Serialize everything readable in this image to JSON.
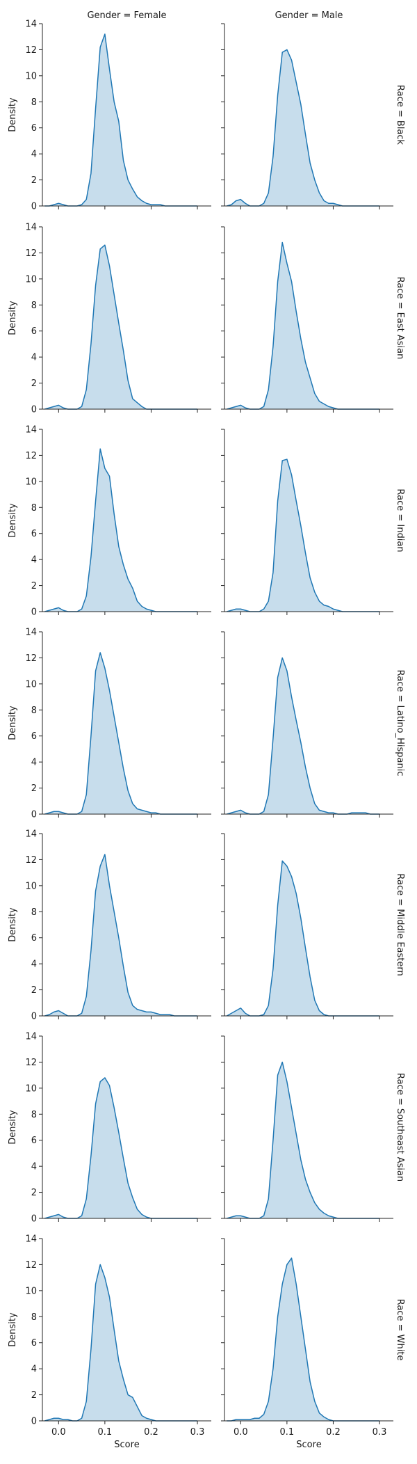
{
  "chart_data": {
    "type": "area",
    "description_type": "facet-grid-kde",
    "col_facet_label_template": "Gender = {}",
    "row_facet_label_template": "Race = {}",
    "columns": [
      "Female",
      "Male"
    ],
    "rows": [
      "Black",
      "East Asian",
      "Indian",
      "Latino_Hispanic",
      "Middle Eastern",
      "Southeast Asian",
      "White"
    ],
    "col_titles": [
      "Gender = Female",
      "Gender = Male"
    ],
    "row_titles": [
      "Race = Black",
      "Race = East Asian",
      "Race = Indian",
      "Race = Latino_Hispanic",
      "Race = Middle Eastern",
      "Race = Southeast Asian",
      "Race = White"
    ],
    "xlabel": "Score",
    "ylabel": "Density",
    "xlim": [
      -0.035,
      0.33
    ],
    "ylim": [
      0,
      14
    ],
    "xticks": [
      0.0,
      0.1,
      0.2,
      0.3
    ],
    "xtick_labels": [
      "0.0",
      "0.1",
      "0.2",
      "0.3"
    ],
    "yticks": [
      0,
      2,
      4,
      6,
      8,
      10,
      12,
      14
    ],
    "ytick_labels": [
      "0",
      "2",
      "4",
      "6",
      "8",
      "10",
      "12",
      "14"
    ],
    "x_grid": [
      -0.03,
      -0.02,
      -0.01,
      0.0,
      0.01,
      0.02,
      0.03,
      0.04,
      0.05,
      0.06,
      0.07,
      0.08,
      0.09,
      0.1,
      0.11,
      0.12,
      0.13,
      0.14,
      0.15,
      0.16,
      0.17,
      0.18,
      0.19,
      0.2,
      0.21,
      0.22,
      0.23,
      0.24,
      0.25,
      0.26,
      0.27,
      0.28,
      0.29,
      0.3
    ],
    "fill_color": "#1f77b4",
    "fill_opacity": 0.25,
    "line_color": "#1f77b4",
    "grid": false,
    "panels": [
      [
        {
          "row": "Black",
          "col": "Female",
          "y": [
            0,
            0,
            0.1,
            0.2,
            0.1,
            0,
            0,
            0,
            0.1,
            0.5,
            2.5,
            7.5,
            12.2,
            13.2,
            10.5,
            8,
            6.5,
            3.5,
            2,
            1.3,
            0.7,
            0.4,
            0.2,
            0.1,
            0.1,
            0.1,
            0,
            0,
            0,
            0,
            0,
            0,
            0,
            0
          ]
        },
        {
          "row": "Black",
          "col": "Male",
          "y": [
            0,
            0.1,
            0.4,
            0.5,
            0.2,
            0,
            0,
            0,
            0.2,
            1,
            3.8,
            8.5,
            11.8,
            12,
            11.2,
            9.5,
            7.8,
            5.5,
            3.3,
            2,
            1,
            0.4,
            0.2,
            0.2,
            0.1,
            0,
            0,
            0,
            0,
            0,
            0,
            0,
            0,
            0
          ]
        }
      ],
      [
        {
          "row": "East Asian",
          "col": "Female",
          "y": [
            0,
            0.1,
            0.2,
            0.3,
            0.1,
            0,
            0,
            0,
            0.2,
            1.5,
            5,
            9.5,
            12.3,
            12.6,
            11,
            8.8,
            6.6,
            4.5,
            2.2,
            0.8,
            0.5,
            0.2,
            0,
            0,
            0,
            0,
            0,
            0,
            0,
            0,
            0,
            0,
            0,
            0
          ]
        },
        {
          "row": "East Asian",
          "col": "Male",
          "y": [
            0,
            0.1,
            0.2,
            0.3,
            0.1,
            0,
            0,
            0,
            0.2,
            1.5,
            4.8,
            9.8,
            12.8,
            11.2,
            9.8,
            7.5,
            5.4,
            3.6,
            2.4,
            1.2,
            0.6,
            0.4,
            0.2,
            0.1,
            0,
            0,
            0,
            0,
            0,
            0,
            0,
            0,
            0,
            0
          ]
        }
      ],
      [
        {
          "row": "Indian",
          "col": "Female",
          "y": [
            0,
            0.1,
            0.2,
            0.3,
            0.1,
            0,
            0,
            0,
            0.2,
            1.2,
            4.2,
            8.5,
            12.5,
            11,
            10.4,
            7.5,
            5,
            3.6,
            2.5,
            1.8,
            0.8,
            0.4,
            0.2,
            0.1,
            0,
            0,
            0,
            0,
            0,
            0,
            0,
            0,
            0,
            0
          ]
        },
        {
          "row": "Indian",
          "col": "Male",
          "y": [
            0,
            0.1,
            0.2,
            0.2,
            0.1,
            0,
            0,
            0,
            0.2,
            0.8,
            3,
            8.5,
            11.6,
            11.7,
            10.5,
            8.5,
            6.6,
            4.5,
            2.6,
            1.5,
            0.8,
            0.5,
            0.4,
            0.2,
            0.1,
            0,
            0,
            0,
            0,
            0,
            0,
            0,
            0,
            0
          ]
        }
      ],
      [
        {
          "row": "Latino_Hispanic",
          "col": "Female",
          "y": [
            0,
            0.1,
            0.2,
            0.2,
            0.1,
            0,
            0,
            0,
            0.2,
            1.5,
            6,
            11,
            12.4,
            11.2,
            9.5,
            7.5,
            5.5,
            3.5,
            1.8,
            0.8,
            0.4,
            0.3,
            0.2,
            0.1,
            0.1,
            0,
            0,
            0,
            0,
            0,
            0,
            0,
            0,
            0
          ]
        },
        {
          "row": "Latino_Hispanic",
          "col": "Male",
          "y": [
            0,
            0.1,
            0.2,
            0.3,
            0.1,
            0,
            0,
            0,
            0.2,
            1.5,
            5.8,
            10.5,
            12,
            11,
            9,
            7.2,
            5.5,
            3.6,
            2,
            0.8,
            0.3,
            0.2,
            0.1,
            0.1,
            0,
            0,
            0,
            0.1,
            0.1,
            0.1,
            0.1,
            0,
            0,
            0
          ]
        }
      ],
      [
        {
          "row": "Middle Eastern",
          "col": "Female",
          "y": [
            0,
            0.1,
            0.3,
            0.4,
            0.2,
            0,
            0,
            0,
            0.2,
            1.5,
            5,
            9.6,
            11.5,
            12.4,
            10,
            8,
            6,
            3.8,
            1.8,
            0.8,
            0.5,
            0.4,
            0.3,
            0.3,
            0.2,
            0.1,
            0.1,
            0.1,
            0,
            0,
            0,
            0,
            0,
            0
          ]
        },
        {
          "row": "Middle Eastern",
          "col": "Male",
          "y": [
            0,
            0.2,
            0.4,
            0.6,
            0.2,
            0,
            0,
            0,
            0.1,
            0.8,
            3.6,
            8.5,
            11.9,
            11.5,
            10.7,
            9.4,
            7.5,
            5.2,
            3,
            1.2,
            0.4,
            0.1,
            0,
            0,
            0,
            0,
            0,
            0,
            0,
            0,
            0,
            0,
            0,
            0
          ]
        }
      ],
      [
        {
          "row": "Southeast Asian",
          "col": "Female",
          "y": [
            0,
            0.1,
            0.2,
            0.3,
            0.1,
            0,
            0,
            0,
            0.2,
            1.5,
            4.8,
            8.8,
            10.5,
            10.8,
            10.2,
            8.5,
            6.6,
            4.6,
            2.7,
            1.6,
            0.7,
            0.3,
            0.1,
            0,
            0,
            0,
            0,
            0,
            0,
            0,
            0,
            0,
            0,
            0
          ]
        },
        {
          "row": "Southeast Asian",
          "col": "Male",
          "y": [
            0,
            0.1,
            0.2,
            0.2,
            0.1,
            0,
            0,
            0,
            0.2,
            1.5,
            6,
            11,
            12,
            10.5,
            8.5,
            6.5,
            4.5,
            3,
            2,
            1.2,
            0.7,
            0.4,
            0.2,
            0.1,
            0,
            0,
            0,
            0,
            0,
            0,
            0,
            0,
            0,
            0
          ]
        }
      ],
      [
        {
          "row": "White",
          "col": "Female",
          "y": [
            0,
            0.1,
            0.2,
            0.2,
            0.1,
            0.1,
            0,
            0,
            0.2,
            1.5,
            5.5,
            10.5,
            12,
            11,
            9.5,
            7,
            4.6,
            3.2,
            2,
            1.8,
            1.1,
            0.4,
            0.2,
            0.1,
            0,
            0,
            0,
            0,
            0,
            0,
            0,
            0,
            0,
            0
          ]
        },
        {
          "row": "White",
          "col": "Male",
          "y": [
            0,
            0,
            0.1,
            0.1,
            0.1,
            0.1,
            0.2,
            0.2,
            0.5,
            1.5,
            4,
            8,
            10.5,
            12,
            12.5,
            10.5,
            8,
            5.5,
            3,
            1.5,
            0.6,
            0.3,
            0.1,
            0,
            0,
            0,
            0,
            0,
            0,
            0,
            0,
            0,
            0,
            0
          ]
        }
      ]
    ]
  }
}
